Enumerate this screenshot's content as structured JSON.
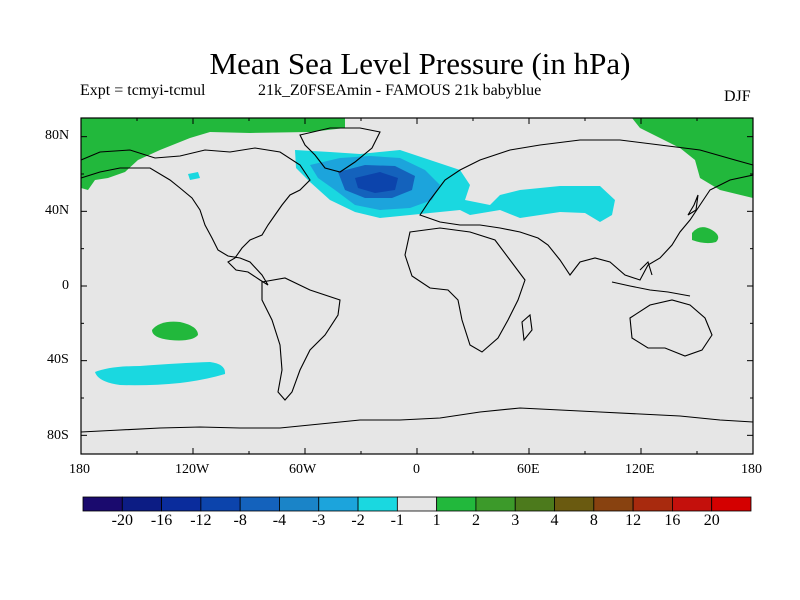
{
  "title": "Mean Sea Level Pressure (in hPa)",
  "experiment": "Expt = tcmyi-tcmul",
  "run_description": "21k_Z0FSEAmin - FAMOUS 21k babyblue",
  "season": "DJF",
  "lat_labels": [
    "80N",
    "40N",
    "0",
    "40S",
    "80S"
  ],
  "lon_labels": [
    "180",
    "120W",
    "60W",
    "0",
    "60E",
    "120E",
    "180"
  ],
  "colorbar": {
    "labels": [
      "-20",
      "-16",
      "-12",
      "-8",
      "-4",
      "-3",
      "-2",
      "-1",
      "1",
      "2",
      "3",
      "4",
      "8",
      "12",
      "16",
      "20"
    ],
    "colors": [
      "#1a0a6e",
      "#0c1c84",
      "#0a2c9c",
      "#0c44ac",
      "#1462bc",
      "#1a84c8",
      "#1ca4dc",
      "#1ad8e0",
      "#e6e6e6",
      "#22b83c",
      "#3c9a2a",
      "#4c7a1c",
      "#6a5a10",
      "#884210",
      "#a82a0e",
      "#c4100c",
      "#d40000"
    ]
  },
  "map": {
    "ocean_color": "#e6e6e6",
    "coastline_color": "#000000",
    "lon_range": [
      -180,
      180
    ],
    "lat_range": [
      -90,
      90
    ]
  }
}
